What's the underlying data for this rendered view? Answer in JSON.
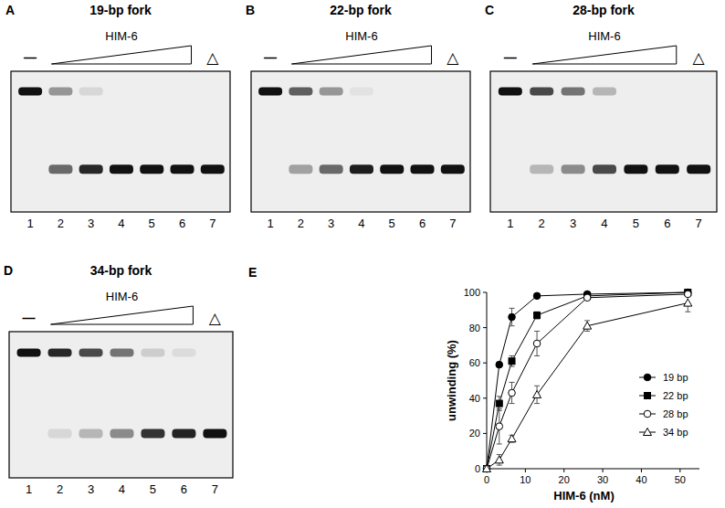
{
  "gels": [
    {
      "panel": "A",
      "title": "19-bp fork",
      "enzyme": "HIM-6",
      "control_label": "—",
      "heat_label": "△",
      "lanes": [
        "1",
        "2",
        "3",
        "4",
        "5",
        "6",
        "7"
      ],
      "unwound": [
        0,
        60,
        90,
        100,
        100,
        100,
        100
      ]
    },
    {
      "panel": "B",
      "title": "22-bp fork",
      "enzyme": "HIM-6",
      "control_label": "—",
      "heat_label": "△",
      "lanes": [
        "1",
        "2",
        "3",
        "4",
        "5",
        "6",
        "7"
      ],
      "unwound": [
        0,
        35,
        60,
        95,
        100,
        100,
        100
      ]
    },
    {
      "panel": "C",
      "title": "28-bp fork",
      "enzyme": "HIM-6",
      "control_label": "—",
      "heat_label": "△",
      "lanes": [
        "1",
        "2",
        "3",
        "4",
        "5",
        "6",
        "7"
      ],
      "unwound": [
        0,
        25,
        45,
        75,
        100,
        100,
        100
      ]
    },
    {
      "panel": "D",
      "title": "34-bp fork",
      "enzyme": "HIM-6",
      "control_label": "—",
      "heat_label": "△",
      "lanes": [
        "1",
        "2",
        "3",
        "4",
        "5",
        "6",
        "7"
      ],
      "unwound": [
        0,
        10,
        25,
        45,
        85,
        92,
        100
      ]
    }
  ],
  "chart_data": {
    "type": "line",
    "panel": "E",
    "x_label": "HIM-6 (nM)",
    "y_label": "unwinding (%)",
    "x": [
      0,
      3.25,
      6.5,
      13,
      26,
      52
    ],
    "xlim": [
      0,
      55
    ],
    "xticks": [
      0,
      10,
      20,
      30,
      40,
      50
    ],
    "ylim": [
      0,
      100
    ],
    "yticks": [
      0,
      20,
      40,
      60,
      80,
      100
    ],
    "grid": false,
    "legend": "lower-right",
    "series": [
      {
        "name": "19 bp",
        "color": "#000000",
        "marker": "circle",
        "values": [
          0,
          59,
          86,
          98,
          99,
          100
        ],
        "errors": [
          0,
          1,
          5,
          1,
          1,
          1
        ]
      },
      {
        "name": "22 bp",
        "color": "#000000",
        "marker": "square",
        "values": [
          0,
          37,
          61,
          87,
          98,
          100
        ],
        "errors": [
          0,
          4,
          3,
          2,
          1,
          1
        ]
      },
      {
        "name": "28 bp",
        "color": "#000000",
        "marker": "open-circle",
        "values": [
          0,
          24,
          43,
          71,
          97,
          99
        ],
        "errors": [
          0,
          10,
          6,
          7,
          1,
          1
        ]
      },
      {
        "name": "34 bp",
        "color": "#000000",
        "marker": "open-triangle",
        "values": [
          0,
          5,
          17,
          42,
          81,
          94
        ],
        "errors": [
          0,
          3,
          2,
          5,
          3,
          5
        ]
      }
    ]
  }
}
